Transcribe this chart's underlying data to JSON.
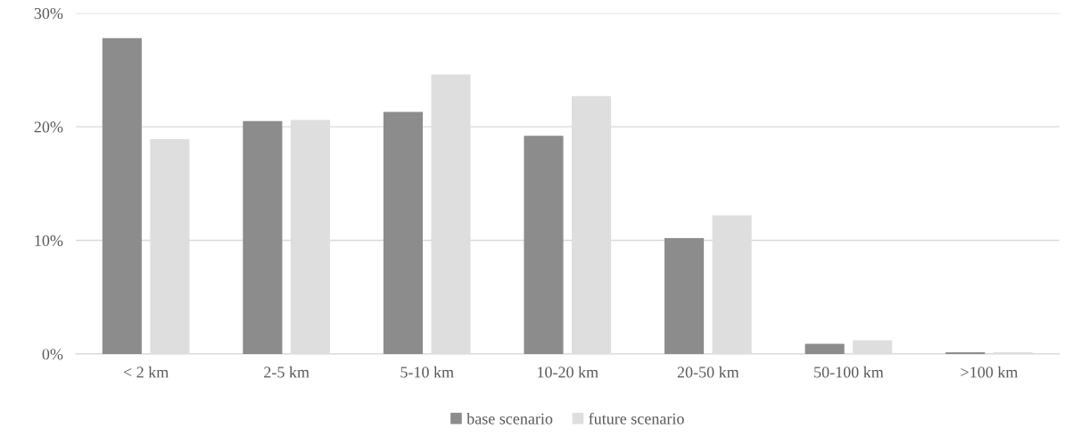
{
  "chart_data": {
    "type": "bar",
    "categories": [
      "< 2 km",
      "2-5 km",
      "5-10 km",
      "10-20 km",
      "20-50 km",
      "50-100 km",
      ">100 km"
    ],
    "series": [
      {
        "name": "base scenario",
        "color": "#8c8c8c",
        "values": [
          27.8,
          20.5,
          21.3,
          19.2,
          10.2,
          0.9,
          0.15
        ]
      },
      {
        "name": "future scenario",
        "color": "#dedede",
        "values": [
          18.9,
          20.6,
          24.6,
          22.7,
          12.2,
          1.2,
          0.15
        ]
      }
    ],
    "ylim": [
      0,
      30
    ],
    "yticks": [
      {
        "value": 0,
        "label": "0%"
      },
      {
        "value": 10,
        "label": "10%"
      },
      {
        "value": 20,
        "label": "20%"
      },
      {
        "value": 30,
        "label": "30%"
      }
    ],
    "grid": "y",
    "legend": "bottom"
  }
}
